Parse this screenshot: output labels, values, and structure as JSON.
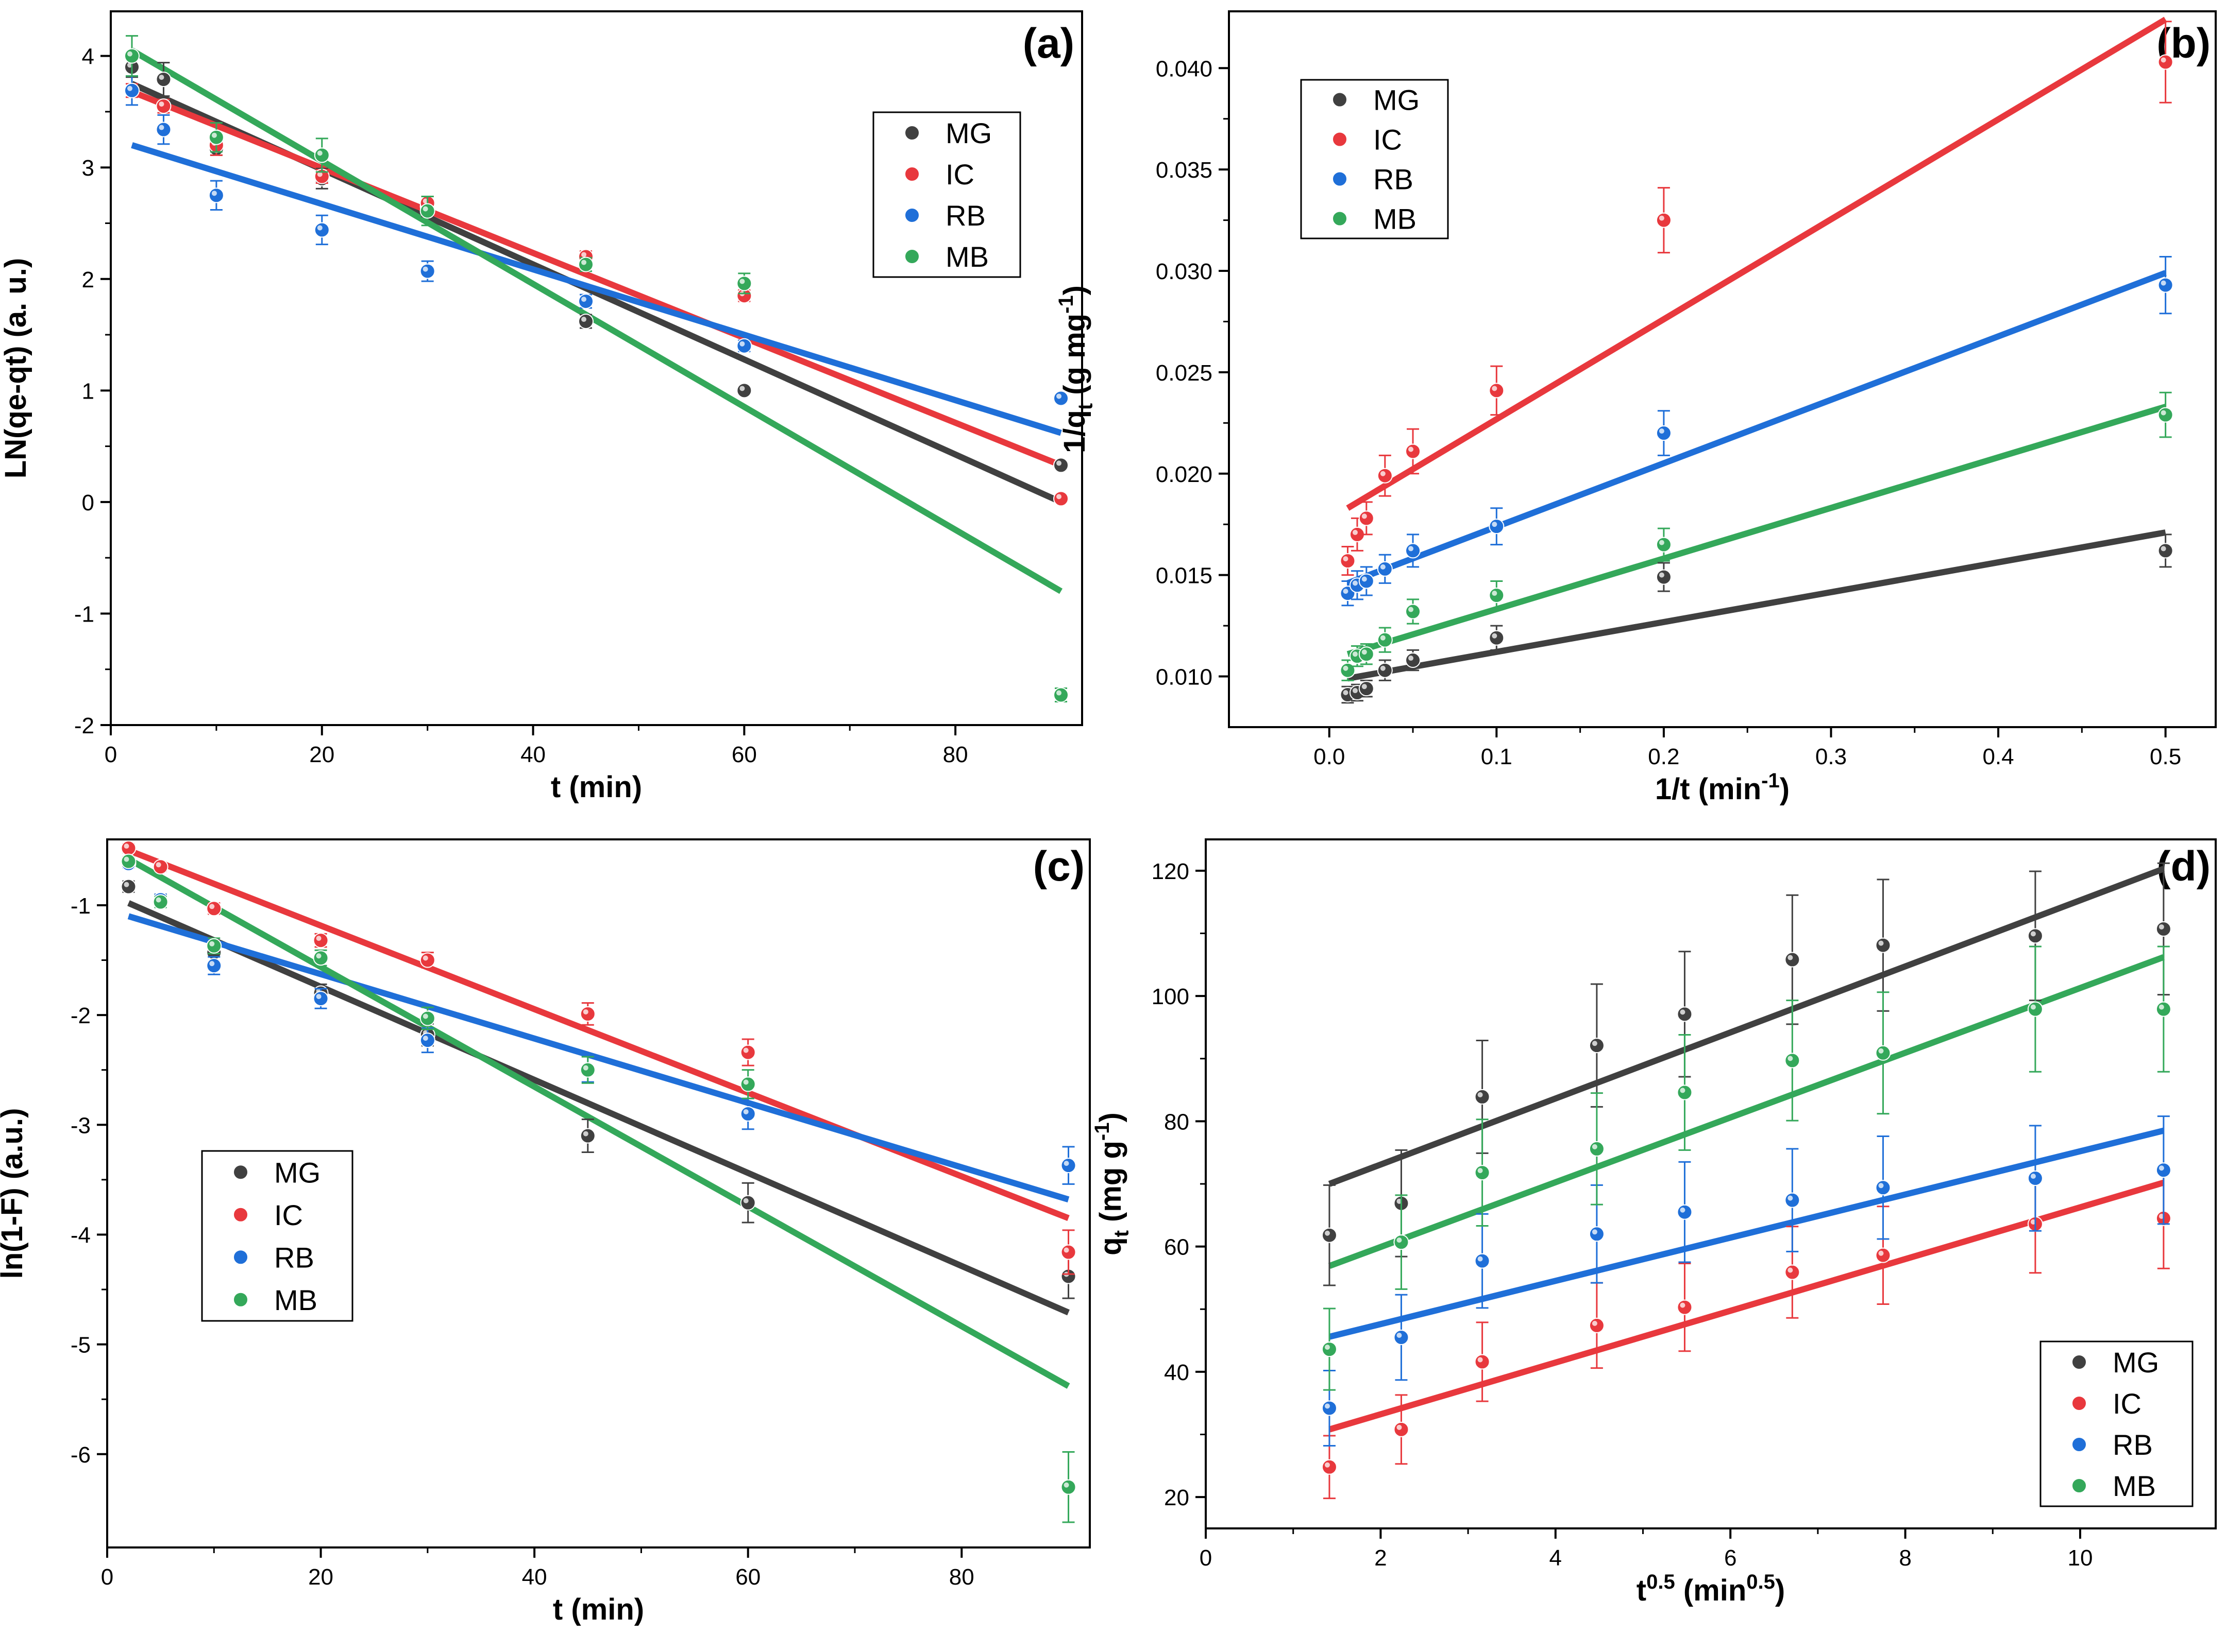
{
  "colors": {
    "MG": "#404040",
    "IC": "#e8383d",
    "RB": "#1f6fd8",
    "MB": "#34a85a"
  },
  "chart_data": [
    {
      "type": "scatter",
      "panel": "(a)",
      "xlabel": "t (min)",
      "ylabel": "LN(qe-qt) (a. u.)",
      "xlim": [
        0,
        92
      ],
      "ylim": [
        -2,
        4.4
      ],
      "xticks": [
        0,
        20,
        40,
        60,
        80
      ],
      "yticks": [
        -2,
        -1,
        0,
        1,
        2,
        3,
        4
      ],
      "xtick_labels": [
        "0",
        "20",
        "40",
        "60",
        "80"
      ],
      "ytick_labels": [
        "-2",
        "-1",
        "0",
        "1",
        "2",
        "3",
        "4"
      ],
      "legend_position": "top-right",
      "series": [
        {
          "name": "MG",
          "x": [
            2,
            5,
            10,
            20,
            30,
            45,
            60,
            90
          ],
          "y": [
            3.9,
            3.79,
            3.17,
            2.9,
            2.65,
            1.62,
            1.0,
            0.33
          ],
          "err": [
            0.09,
            0.15,
            0.06,
            0.09,
            0.09,
            0.06,
            0.03,
            0.03
          ],
          "fit": [
            [
              2,
              3.75
            ],
            [
              90,
              0.0
            ]
          ]
        },
        {
          "name": "IC",
          "x": [
            2,
            5,
            10,
            20,
            30,
            45,
            60,
            90
          ],
          "y": [
            3.69,
            3.55,
            3.2,
            2.92,
            2.68,
            2.2,
            1.85,
            0.03
          ],
          "err": [
            0.06,
            0.06,
            0.09,
            0.06,
            0.06,
            0.05,
            0.05,
            0.03
          ],
          "fit": [
            [
              2,
              3.68
            ],
            [
              90,
              0.33
            ]
          ]
        },
        {
          "name": "RB",
          "x": [
            2,
            5,
            10,
            20,
            30,
            45,
            60,
            90
          ],
          "y": [
            3.69,
            3.34,
            2.75,
            2.44,
            2.07,
            1.8,
            1.4,
            0.93
          ],
          "err": [
            0.13,
            0.13,
            0.13,
            0.13,
            0.09,
            0.06,
            0.05,
            0.03
          ],
          "fit": [
            [
              2,
              3.2
            ],
            [
              90,
              0.62
            ]
          ]
        },
        {
          "name": "MB",
          "x": [
            2,
            10,
            20,
            30,
            45,
            60,
            90
          ],
          "y": [
            4.0,
            3.27,
            3.11,
            2.61,
            2.13,
            1.96,
            -1.73
          ],
          "err": [
            0.18,
            0.13,
            0.15,
            0.13,
            0.06,
            0.09,
            0.06
          ],
          "fit": [
            [
              2,
              4.05
            ],
            [
              90,
              -0.8
            ]
          ]
        }
      ]
    },
    {
      "type": "scatter",
      "panel": "(b)",
      "xlabel": "1/t (min⁻¹)",
      "ylabel": "1/qₜ (g mg⁻¹)",
      "xlim": [
        -0.06,
        0.53
      ],
      "ylim": [
        0.0075,
        0.0428
      ],
      "xticks": [
        0,
        0.1,
        0.2,
        0.3,
        0.4,
        0.5
      ],
      "yticks": [
        0.01,
        0.015,
        0.02,
        0.025,
        0.03,
        0.035,
        0.04
      ],
      "xtick_labels": [
        "0.0",
        "0.1",
        "0.2",
        "0.3",
        "0.4",
        "0.5"
      ],
      "ytick_labels": [
        "0.010",
        "0.015",
        "0.020",
        "0.025",
        "0.030",
        "0.035",
        "0.040"
      ],
      "legend_position": "top-left",
      "series": [
        {
          "name": "MG",
          "x": [
            0.011,
            0.0167,
            0.0222,
            0.0333,
            0.05,
            0.1,
            0.2,
            0.5
          ],
          "y": [
            0.0091,
            0.0092,
            0.0094,
            0.0103,
            0.0108,
            0.0119,
            0.0149,
            0.0162
          ],
          "err": [
            0.0004,
            0.0004,
            0.0004,
            0.0005,
            0.0005,
            0.0006,
            0.0007,
            0.0008
          ],
          "fit": [
            [
              0.011,
              0.0099
            ],
            [
              0.5,
              0.0171
            ]
          ]
        },
        {
          "name": "IC",
          "x": [
            0.011,
            0.0167,
            0.0222,
            0.0333,
            0.05,
            0.1,
            0.2,
            0.5
          ],
          "y": [
            0.0157,
            0.017,
            0.0178,
            0.0199,
            0.0211,
            0.0241,
            0.0325,
            0.0403
          ],
          "err": [
            0.0007,
            0.0008,
            0.0008,
            0.001,
            0.0011,
            0.0012,
            0.0016,
            0.002
          ],
          "fit": [
            [
              0.011,
              0.0183
            ],
            [
              0.5,
              0.0424
            ]
          ]
        },
        {
          "name": "RB",
          "x": [
            0.011,
            0.0167,
            0.0222,
            0.0333,
            0.05,
            0.1,
            0.2,
            0.5
          ],
          "y": [
            0.0141,
            0.0145,
            0.0147,
            0.0153,
            0.0162,
            0.0174,
            0.022,
            0.0293
          ],
          "err": [
            0.0006,
            0.0007,
            0.0007,
            0.0007,
            0.0008,
            0.0009,
            0.0011,
            0.0014
          ],
          "fit": [
            [
              0.011,
              0.0146
            ],
            [
              0.5,
              0.0299
            ]
          ]
        },
        {
          "name": "MB",
          "x": [
            0.011,
            0.0167,
            0.0222,
            0.0333,
            0.05,
            0.1,
            0.2,
            0.5
          ],
          "y": [
            0.0103,
            0.011,
            0.0111,
            0.0118,
            0.0132,
            0.014,
            0.0165,
            0.0229
          ],
          "err": [
            0.0005,
            0.0005,
            0.0005,
            0.0006,
            0.0006,
            0.0007,
            0.0008,
            0.0011
          ],
          "fit": [
            [
              0.011,
              0.0111
            ],
            [
              0.5,
              0.0233
            ]
          ]
        }
      ]
    },
    {
      "type": "scatter",
      "panel": "(c)",
      "xlabel": "t (min)",
      "ylabel": "ln(1-F) (a.u.)",
      "xlim": [
        0,
        92
      ],
      "ylim": [
        -6.85,
        -0.4
      ],
      "xticks": [
        0,
        20,
        40,
        60,
        80
      ],
      "yticks": [
        -6,
        -5,
        -4,
        -3,
        -2,
        -1
      ],
      "xtick_labels": [
        "0",
        "20",
        "40",
        "60",
        "80"
      ],
      "ytick_labels": [
        "-6",
        "-5",
        "-4",
        "-3",
        "-2",
        "-1"
      ],
      "legend_position": "center-left",
      "series": [
        {
          "name": "MG",
          "x": [
            2,
            5,
            10,
            20,
            30,
            45,
            60,
            90
          ],
          "y": [
            -0.83,
            -0.95,
            -1.43,
            -1.8,
            -2.18,
            -3.1,
            -3.71,
            -4.38
          ],
          "err": [
            0.05,
            0.05,
            0.1,
            0.08,
            0.1,
            0.15,
            0.18,
            0.2
          ],
          "fit": [
            [
              2,
              -0.98
            ],
            [
              90,
              -4.71
            ]
          ]
        },
        {
          "name": "IC",
          "x": [
            2,
            5,
            10,
            20,
            30,
            45,
            60,
            90
          ],
          "y": [
            -0.48,
            -0.65,
            -1.03,
            -1.32,
            -1.5,
            -1.99,
            -2.34,
            -4.16
          ],
          "err": [
            0.04,
            0.04,
            0.05,
            0.06,
            0.07,
            0.1,
            0.12,
            0.2
          ],
          "fit": [
            [
              2,
              -0.5
            ],
            [
              90,
              -3.85
            ]
          ]
        },
        {
          "name": "RB",
          "x": [
            2,
            5,
            10,
            20,
            30,
            45,
            60,
            90
          ],
          "y": [
            -0.62,
            -0.95,
            -1.55,
            -1.85,
            -2.23,
            -2.49,
            -2.9,
            -3.37
          ],
          "err": [
            0.04,
            0.05,
            0.08,
            0.09,
            0.11,
            0.12,
            0.14,
            0.17
          ],
          "fit": [
            [
              2,
              -1.1
            ],
            [
              90,
              -3.68
            ]
          ]
        },
        {
          "name": "MB",
          "x": [
            2,
            5,
            10,
            20,
            30,
            45,
            60,
            90
          ],
          "y": [
            -0.6,
            -0.97,
            -1.37,
            -1.48,
            -2.03,
            -2.5,
            -2.63,
            -6.3
          ],
          "err": [
            0.04,
            0.05,
            0.07,
            0.07,
            0.1,
            0.12,
            0.13,
            0.32
          ],
          "fit": [
            [
              2,
              -0.58
            ],
            [
              90,
              -5.38
            ]
          ]
        }
      ]
    },
    {
      "type": "scatter",
      "panel": "(d)",
      "xlabel": "t⁰·⁵ (min⁰·⁵)",
      "ylabel": "qₜ (mg g⁻¹)",
      "xlim": [
        0,
        11.55
      ],
      "ylim": [
        15,
        125
      ],
      "xticks": [
        0,
        2,
        4,
        6,
        8,
        10
      ],
      "yticks": [
        20,
        40,
        60,
        80,
        100,
        120
      ],
      "xtick_labels": [
        "0",
        "2",
        "4",
        "6",
        "8",
        "10"
      ],
      "ytick_labels": [
        "20",
        "40",
        "60",
        "80",
        "100",
        "120"
      ],
      "legend_position": "bottom-right",
      "series": [
        {
          "name": "MG",
          "x": [
            1.414,
            2.236,
            3.162,
            4.472,
            5.477,
            6.708,
            7.746,
            9.487,
            10.954
          ],
          "y": [
            61.8,
            66.9,
            83.9,
            92.1,
            97.1,
            105.8,
            108.1,
            109.6,
            110.7
          ],
          "err": [
            8.0,
            8.5,
            9.0,
            9.8,
            10.0,
            10.3,
            10.5,
            10.3,
            10.5
          ],
          "fit": [
            [
              1.414,
              70.0
            ],
            [
              10.954,
              120.3
            ]
          ]
        },
        {
          "name": "IC",
          "x": [
            1.414,
            2.236,
            3.162,
            4.472,
            5.477,
            6.708,
            7.746,
            9.487,
            10.954
          ],
          "y": [
            24.8,
            30.8,
            41.6,
            47.4,
            50.3,
            55.9,
            58.6,
            63.6,
            64.5
          ],
          "err": [
            5.0,
            5.5,
            6.3,
            6.8,
            7.0,
            7.3,
            7.8,
            7.8,
            8.0
          ],
          "fit": [
            [
              1.414,
              30.8
            ],
            [
              10.954,
              70.2
            ]
          ]
        },
        {
          "name": "RB",
          "x": [
            1.414,
            2.236,
            3.162,
            4.472,
            5.477,
            6.708,
            7.746,
            9.487,
            10.954
          ],
          "y": [
            34.2,
            45.5,
            57.7,
            62.0,
            65.5,
            67.4,
            69.4,
            70.9,
            72.2
          ],
          "err": [
            6.0,
            6.8,
            7.5,
            7.8,
            8.0,
            8.2,
            8.2,
            8.4,
            8.6
          ],
          "fit": [
            [
              1.414,
              45.6
            ],
            [
              10.954,
              78.5
            ]
          ]
        },
        {
          "name": "MB",
          "x": [
            1.414,
            2.236,
            3.162,
            4.472,
            5.477,
            6.708,
            7.746,
            9.487,
            10.954
          ],
          "y": [
            43.6,
            60.7,
            71.8,
            75.6,
            84.6,
            89.7,
            90.9,
            97.9,
            97.9
          ],
          "err": [
            6.5,
            7.5,
            8.5,
            8.9,
            9.2,
            9.6,
            9.7,
            10.0,
            10.0
          ],
          "fit": [
            [
              1.414,
              56.9
            ],
            [
              10.954,
              106.2
            ]
          ]
        }
      ]
    }
  ]
}
